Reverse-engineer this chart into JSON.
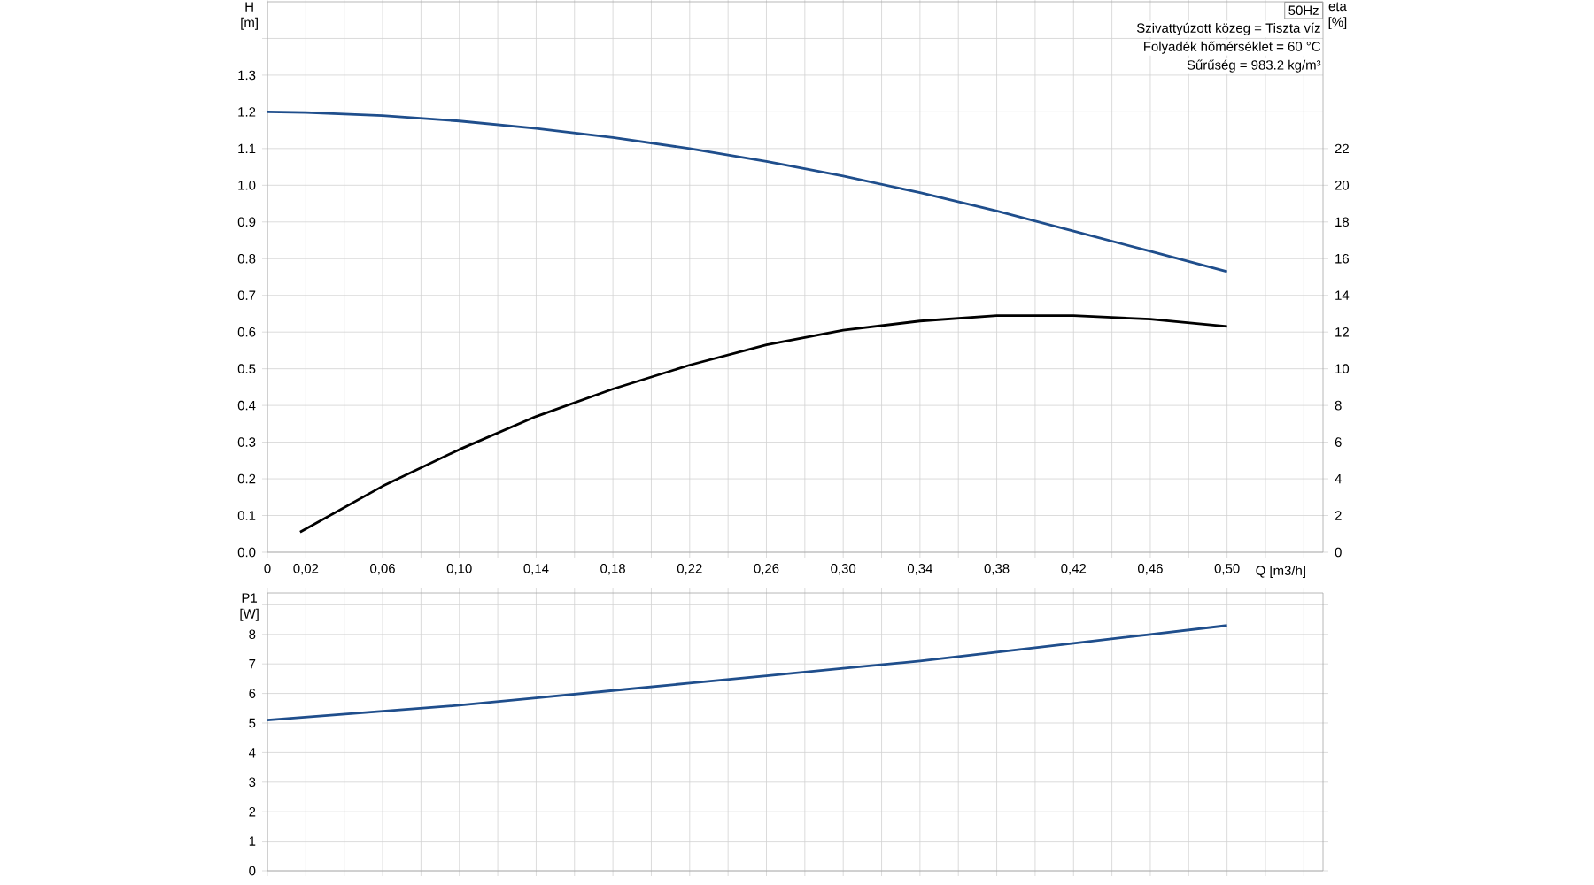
{
  "chart_data": [
    {
      "type": "line",
      "xlabel": "Q [m3/h]",
      "ylabel": "H [m]",
      "y2label": "eta [%]",
      "series": [
        {
          "color": "#1f4e8c",
          "x": [
            0,
            0.02,
            0.06,
            0.1,
            0.14,
            0.18,
            0.22,
            0.26,
            0.3,
            0.34,
            0.38,
            0.42,
            0.46,
            0.5
          ],
          "values": [
            1.2,
            1.198,
            1.19,
            1.175,
            1.155,
            1.13,
            1.1,
            1.065,
            1.025,
            0.98,
            0.93,
            0.875,
            0.82,
            0.765
          ]
        },
        {
          "color": "#000000",
          "axis": "y2",
          "x": [
            0.017,
            0.06,
            0.1,
            0.14,
            0.18,
            0.22,
            0.26,
            0.3,
            0.34,
            0.38,
            0.42,
            0.46,
            0.5
          ],
          "values": [
            1.1,
            3.6,
            5.6,
            7.4,
            8.9,
            10.2,
            11.3,
            12.1,
            12.6,
            12.9,
            12.9,
            12.7,
            12.3
          ]
        }
      ],
      "xlim": [
        0,
        0.55
      ],
      "ylim": [
        0,
        1.5
      ],
      "y2lim": [
        0,
        30
      ],
      "xticks": [
        0,
        {
          "value": 0.02,
          "label": "0,02"
        },
        {
          "value": 0.04,
          "label": null
        },
        {
          "value": 0.06,
          "label": "0,06"
        },
        {
          "value": 0.08,
          "label": null
        },
        {
          "value": 0.1,
          "label": "0,10"
        },
        {
          "value": 0.12,
          "label": null
        },
        {
          "value": 0.14,
          "label": "0,14"
        },
        {
          "value": 0.16,
          "label": null
        },
        {
          "value": 0.18,
          "label": "0,18"
        },
        {
          "value": 0.2,
          "label": null
        },
        {
          "value": 0.22,
          "label": "0,22"
        },
        {
          "value": 0.24,
          "label": null
        },
        {
          "value": 0.26,
          "label": "0,26"
        },
        {
          "value": 0.28,
          "label": null
        },
        {
          "value": 0.3,
          "label": "0,30"
        },
        {
          "value": 0.32,
          "label": null
        },
        {
          "value": 0.34,
          "label": "0,34"
        },
        {
          "value": 0.36,
          "label": null
        },
        {
          "value": 0.38,
          "label": "0,38"
        },
        {
          "value": 0.4,
          "label": null
        },
        {
          "value": 0.42,
          "label": "0,42"
        },
        {
          "value": 0.44,
          "label": null
        },
        {
          "value": 0.46,
          "label": "0,46"
        },
        {
          "value": 0.48,
          "label": null
        },
        {
          "value": 0.5,
          "label": "0,50"
        },
        {
          "value": 0.52,
          "label": null
        },
        {
          "value": 0.54,
          "label": null
        }
      ],
      "yticks": [
        {
          "value": 0,
          "label": "0.0"
        },
        0.1,
        0.2,
        0.3,
        0.4,
        0.5,
        0.6,
        0.7,
        0.8,
        0.9,
        {
          "value": 1.0,
          "label": "1.0"
        },
        1.1,
        1.2,
        1.3,
        {
          "value": 1.4,
          "label": null
        }
      ],
      "y2ticks": [
        0,
        2,
        4,
        6,
        8,
        10,
        12,
        14,
        16,
        18,
        20,
        22
      ],
      "grid": true,
      "annotations": [
        "50Hz",
        "Szivattyúzott közeg = Tiszta víz",
        "Folyadék hőmérséklet = 60 °C",
        "Sűrűség = 983.2 kg/m³"
      ]
    },
    {
      "type": "line",
      "ylabel": "P1 [W]",
      "series": [
        {
          "color": "#1f4e8c",
          "x": [
            0,
            0.06,
            0.1,
            0.14,
            0.18,
            0.22,
            0.26,
            0.3,
            0.34,
            0.38,
            0.42,
            0.46,
            0.5
          ],
          "values": [
            5.1,
            5.4,
            5.6,
            5.85,
            6.1,
            6.35,
            6.6,
            6.85,
            7.1,
            7.4,
            7.7,
            8.0,
            8.3
          ]
        }
      ],
      "xlim": [
        0,
        0.55
      ],
      "ylim": [
        0,
        9.4
      ],
      "xticks": [
        {
          "value": 0,
          "label": null
        },
        {
          "value": 0.02,
          "label": null
        },
        {
          "value": 0.04,
          "label": null
        },
        {
          "value": 0.06,
          "label": null
        },
        {
          "value": 0.08,
          "label": null
        },
        {
          "value": 0.1,
          "label": null
        },
        {
          "value": 0.12,
          "label": null
        },
        {
          "value": 0.14,
          "label": null
        },
        {
          "value": 0.16,
          "label": null
        },
        {
          "value": 0.18,
          "label": null
        },
        {
          "value": 0.2,
          "label": null
        },
        {
          "value": 0.22,
          "label": null
        },
        {
          "value": 0.24,
          "label": null
        },
        {
          "value": 0.26,
          "label": null
        },
        {
          "value": 0.28,
          "label": null
        },
        {
          "value": 0.3,
          "label": null
        },
        {
          "value": 0.32,
          "label": null
        },
        {
          "value": 0.34,
          "label": null
        },
        {
          "value": 0.36,
          "label": null
        },
        {
          "value": 0.38,
          "label": null
        },
        {
          "value": 0.4,
          "label": null
        },
        {
          "value": 0.42,
          "label": null
        },
        {
          "value": 0.44,
          "label": null
        },
        {
          "value": 0.46,
          "label": null
        },
        {
          "value": 0.48,
          "label": null
        },
        {
          "value": 0.5,
          "label": null
        },
        {
          "value": 0.52,
          "label": null
        },
        {
          "value": 0.54,
          "label": null
        }
      ],
      "yticks": [
        0,
        1,
        2,
        3,
        4,
        5,
        6,
        7,
        8,
        {
          "value": 9,
          "label": null
        }
      ],
      "grid": true,
      "tick_labels": "y"
    }
  ]
}
